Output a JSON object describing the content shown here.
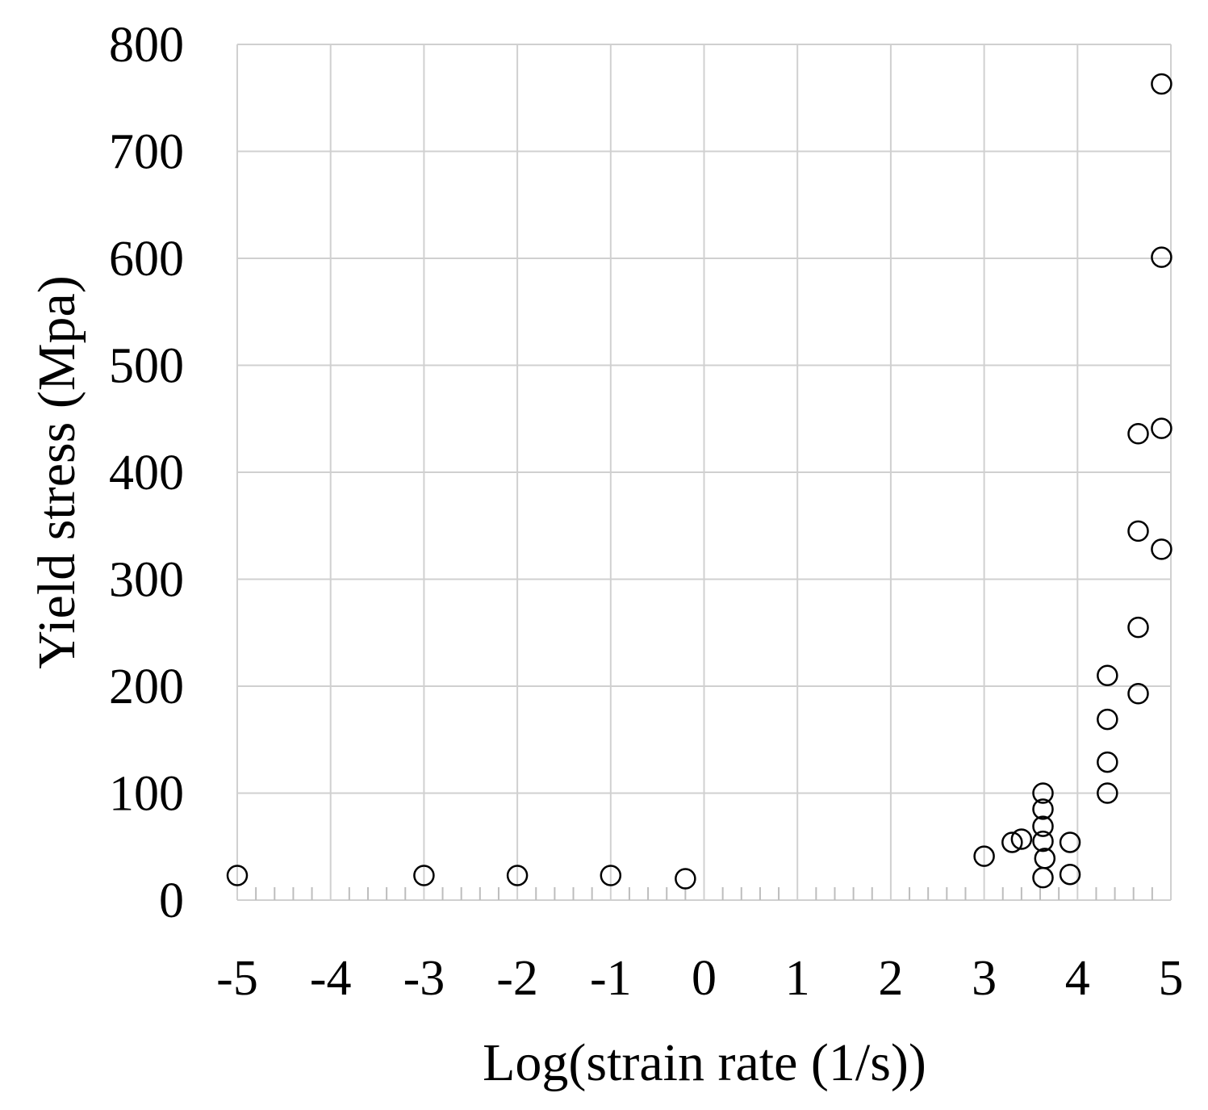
{
  "chart_data": {
    "type": "scatter",
    "title": "",
    "xlabel": "Log(strain rate (1/s))",
    "ylabel": "Yield stress (Mpa)",
    "xlim": [
      -5,
      5
    ],
    "ylim": [
      0,
      800
    ],
    "x_ticks": [
      "-5",
      "-4",
      "-3",
      "-2",
      "-1",
      "0",
      "1",
      "2",
      "3",
      "4",
      "5"
    ],
    "y_ticks": [
      "0",
      "100",
      "200",
      "300",
      "400",
      "500",
      "600",
      "700",
      "800"
    ],
    "grid": true,
    "marker": "open-circle",
    "marker_color": "#000000",
    "grid_color": "#d0d0d0",
    "series": [
      {
        "points": [
          {
            "x": -5.0,
            "y": 23
          },
          {
            "x": -3.0,
            "y": 23
          },
          {
            "x": -2.0,
            "y": 23
          },
          {
            "x": -1.0,
            "y": 23
          },
          {
            "x": -0.2,
            "y": 20
          },
          {
            "x": 3.0,
            "y": 41
          },
          {
            "x": 3.3,
            "y": 54
          },
          {
            "x": 3.4,
            "y": 57
          },
          {
            "x": 3.63,
            "y": 21
          },
          {
            "x": 3.65,
            "y": 39
          },
          {
            "x": 3.63,
            "y": 55
          },
          {
            "x": 3.63,
            "y": 69
          },
          {
            "x": 3.63,
            "y": 85
          },
          {
            "x": 3.63,
            "y": 100
          },
          {
            "x": 3.92,
            "y": 24
          },
          {
            "x": 3.92,
            "y": 54
          },
          {
            "x": 4.32,
            "y": 100
          },
          {
            "x": 4.32,
            "y": 129
          },
          {
            "x": 4.32,
            "y": 169
          },
          {
            "x": 4.32,
            "y": 210
          },
          {
            "x": 4.65,
            "y": 193
          },
          {
            "x": 4.65,
            "y": 255
          },
          {
            "x": 4.65,
            "y": 345
          },
          {
            "x": 4.65,
            "y": 436
          },
          {
            "x": 4.9,
            "y": 328
          },
          {
            "x": 4.9,
            "y": 441
          },
          {
            "x": 4.9,
            "y": 601
          },
          {
            "x": 4.9,
            "y": 763
          }
        ]
      }
    ]
  }
}
